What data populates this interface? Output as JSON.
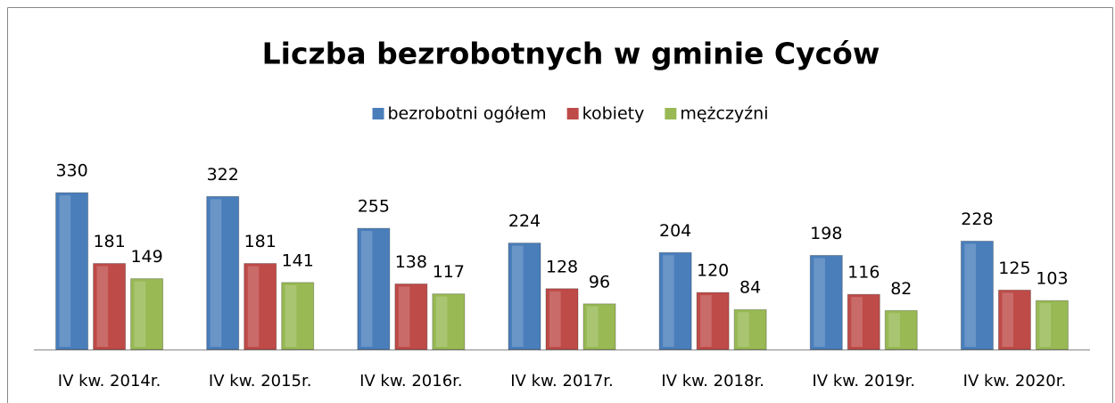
{
  "chart_data": {
    "type": "bar",
    "title": "Liczba bezrobotnych w gminie Cyców",
    "categories": [
      "IV kw. 2014r.",
      "IV kw. 2015r.",
      "IV kw. 2016r.",
      "IV kw. 2017r.",
      "IV kw. 2018r.",
      "IV kw. 2019r.",
      "IV kw. 2020r."
    ],
    "series": [
      {
        "name": "bezrobotni ogółem",
        "color": "#4a7ebb",
        "values": [
          330,
          322,
          255,
          224,
          204,
          198,
          228
        ]
      },
      {
        "name": "kobiety",
        "color": "#be4b48",
        "values": [
          181,
          181,
          138,
          128,
          120,
          116,
          125
        ]
      },
      {
        "name": "mężczyźni",
        "color": "#98b954",
        "values": [
          149,
          141,
          117,
          96,
          84,
          82,
          103
        ]
      }
    ],
    "legend": "top"
  }
}
